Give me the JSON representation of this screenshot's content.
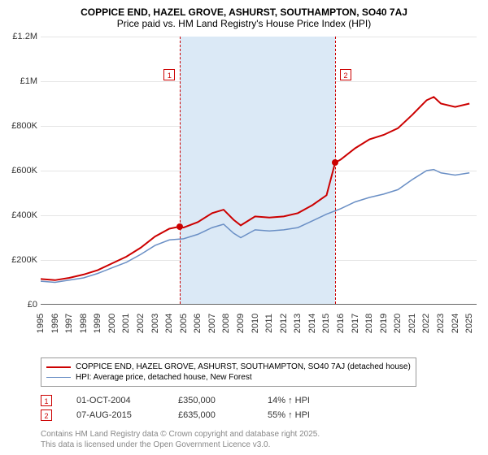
{
  "title": "COPPICE END, HAZEL GROVE, ASHURST, SOUTHAMPTON, SO40 7AJ",
  "subtitle": "Price paid vs. HM Land Registry's House Price Index (HPI)",
  "chart": {
    "type": "line",
    "x_axis": {
      "min": 1995,
      "max": 2025.5,
      "ticks": [
        1995,
        1996,
        1997,
        1998,
        1999,
        2000,
        2001,
        2002,
        2003,
        2004,
        2005,
        2006,
        2007,
        2008,
        2009,
        2010,
        2011,
        2012,
        2013,
        2014,
        2015,
        2016,
        2017,
        2018,
        2019,
        2020,
        2021,
        2022,
        2023,
        2024,
        2025
      ]
    },
    "y_axis": {
      "min": 0,
      "max": 1200000,
      "tick_step": 200000,
      "tick_labels": [
        "£0",
        "£200K",
        "£400K",
        "£600K",
        "£800K",
        "£1M",
        "£1.2M"
      ]
    },
    "gridline_color": "#e5e5e5",
    "background_color": "#ffffff",
    "shaded_band": {
      "from_x": 2004.75,
      "to_x": 2015.6,
      "color": "#dbe9f6"
    },
    "series": [
      {
        "name": "property_price",
        "label": "COPPICE END, HAZEL GROVE, ASHURST, SOUTHAMPTON, SO40 7AJ (detached house)",
        "color": "#cc0000",
        "line_width": 2,
        "points": [
          [
            1995.0,
            115000
          ],
          [
            1996.0,
            110000
          ],
          [
            1997.0,
            120000
          ],
          [
            1998.0,
            135000
          ],
          [
            1999.0,
            155000
          ],
          [
            2000.0,
            185000
          ],
          [
            2001.0,
            215000
          ],
          [
            2002.0,
            255000
          ],
          [
            2003.0,
            305000
          ],
          [
            2004.0,
            340000
          ],
          [
            2004.75,
            350000
          ],
          [
            2005.0,
            345000
          ],
          [
            2006.0,
            370000
          ],
          [
            2007.0,
            410000
          ],
          [
            2007.8,
            425000
          ],
          [
            2008.5,
            380000
          ],
          [
            2009.0,
            355000
          ],
          [
            2010.0,
            395000
          ],
          [
            2011.0,
            390000
          ],
          [
            2012.0,
            395000
          ],
          [
            2013.0,
            410000
          ],
          [
            2014.0,
            445000
          ],
          [
            2015.0,
            490000
          ],
          [
            2015.6,
            635000
          ],
          [
            2016.0,
            650000
          ],
          [
            2017.0,
            700000
          ],
          [
            2018.0,
            740000
          ],
          [
            2019.0,
            760000
          ],
          [
            2020.0,
            790000
          ],
          [
            2021.0,
            850000
          ],
          [
            2022.0,
            915000
          ],
          [
            2022.5,
            930000
          ],
          [
            2023.0,
            900000
          ],
          [
            2024.0,
            885000
          ],
          [
            2025.0,
            900000
          ]
        ]
      },
      {
        "name": "hpi",
        "label": "HPI: Average price, detached house, New Forest",
        "color": "#6a8fc5",
        "line_width": 1.5,
        "points": [
          [
            1995.0,
            105000
          ],
          [
            1996.0,
            100000
          ],
          [
            1997.0,
            110000
          ],
          [
            1998.0,
            120000
          ],
          [
            1999.0,
            140000
          ],
          [
            2000.0,
            165000
          ],
          [
            2001.0,
            190000
          ],
          [
            2002.0,
            225000
          ],
          [
            2003.0,
            265000
          ],
          [
            2004.0,
            290000
          ],
          [
            2005.0,
            295000
          ],
          [
            2006.0,
            315000
          ],
          [
            2007.0,
            345000
          ],
          [
            2007.8,
            360000
          ],
          [
            2008.5,
            320000
          ],
          [
            2009.0,
            300000
          ],
          [
            2010.0,
            335000
          ],
          [
            2011.0,
            330000
          ],
          [
            2012.0,
            335000
          ],
          [
            2013.0,
            345000
          ],
          [
            2014.0,
            375000
          ],
          [
            2015.0,
            405000
          ],
          [
            2016.0,
            430000
          ],
          [
            2017.0,
            460000
          ],
          [
            2018.0,
            480000
          ],
          [
            2019.0,
            495000
          ],
          [
            2020.0,
            515000
          ],
          [
            2021.0,
            560000
          ],
          [
            2022.0,
            600000
          ],
          [
            2022.5,
            605000
          ],
          [
            2023.0,
            590000
          ],
          [
            2024.0,
            580000
          ],
          [
            2025.0,
            590000
          ]
        ]
      }
    ],
    "markers": [
      {
        "id": "1",
        "x": 2004.75,
        "y": 350000
      },
      {
        "id": "2",
        "x": 2015.6,
        "y": 635000
      }
    ]
  },
  "legend": {
    "items": [
      {
        "color": "#cc0000",
        "width": 2,
        "label": "COPPICE END, HAZEL GROVE, ASHURST, SOUTHAMPTON, SO40 7AJ (detached house)"
      },
      {
        "color": "#6a8fc5",
        "width": 1.5,
        "label": "HPI: Average price, detached house, New Forest"
      }
    ]
  },
  "sales": [
    {
      "marker": "1",
      "date": "01-OCT-2004",
      "price": "£350,000",
      "hpi_pct": "14% ↑ HPI"
    },
    {
      "marker": "2",
      "date": "07-AUG-2015",
      "price": "£635,000",
      "hpi_pct": "55% ↑ HPI"
    }
  ],
  "footer": {
    "line1": "Contains HM Land Registry data © Crown copyright and database right 2025.",
    "line2": "This data is licensed under the Open Government Licence v3.0."
  }
}
